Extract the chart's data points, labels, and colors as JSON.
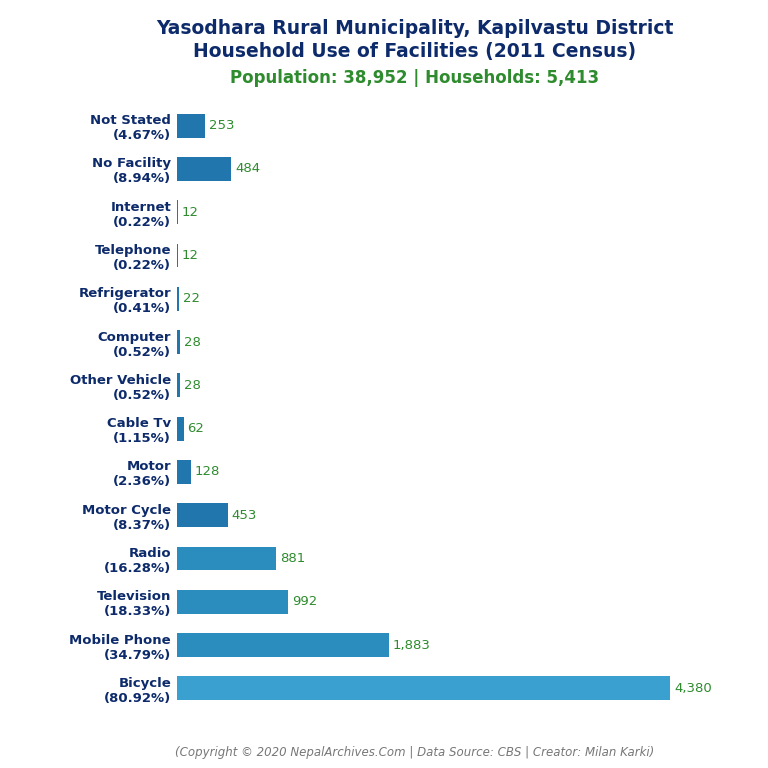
{
  "title_line1": "Yasodhara Rural Municipality, Kapilvastu District",
  "title_line2": "Household Use of Facilities (2011 Census)",
  "subtitle": "Population: 38,952 | Households: 5,413",
  "copyright": "(Copyright © 2020 NepalArchives.Com | Data Source: CBS | Creator: Milan Karki)",
  "categories": [
    "Not Stated\n(4.67%)",
    "No Facility\n(8.94%)",
    "Internet\n(0.22%)",
    "Telephone\n(0.22%)",
    "Refrigerator\n(0.41%)",
    "Computer\n(0.52%)",
    "Other Vehicle\n(0.52%)",
    "Cable Tv\n(1.15%)",
    "Motor\n(2.36%)",
    "Motor Cycle\n(8.37%)",
    "Radio\n(16.28%)",
    "Television\n(18.33%)",
    "Mobile Phone\n(34.79%)",
    "Bicycle\n(80.92%)"
  ],
  "values": [
    253,
    484,
    12,
    12,
    22,
    28,
    28,
    62,
    128,
    453,
    881,
    992,
    1883,
    4380
  ],
  "value_labels": [
    "253",
    "484",
    "12",
    "12",
    "22",
    "28",
    "28",
    "62",
    "128",
    "453",
    "881",
    "992",
    "1,883",
    "4,380"
  ],
  "bar_colors": [
    "#2176ae",
    "#2176ae",
    "#2176ae",
    "#2176ae",
    "#2176ae",
    "#2176ae",
    "#2176ae",
    "#2176ae",
    "#2176ae",
    "#2176ae",
    "#2b8cbe",
    "#2b8cbe",
    "#2b8cbe",
    "#3aa0d0"
  ],
  "title_color": "#0d2b6b",
  "subtitle_color": "#2e8b2e",
  "value_label_color": "#2e8b2e",
  "ylabel_color": "#0d2b6b",
  "copyright_color": "#777777",
  "background_color": "#ffffff",
  "title_fontsize": 13.5,
  "subtitle_fontsize": 12,
  "label_fontsize": 9.5,
  "value_fontsize": 9.5,
  "copyright_fontsize": 8.5,
  "bar_height": 0.55,
  "xlim_factor": 1.12
}
